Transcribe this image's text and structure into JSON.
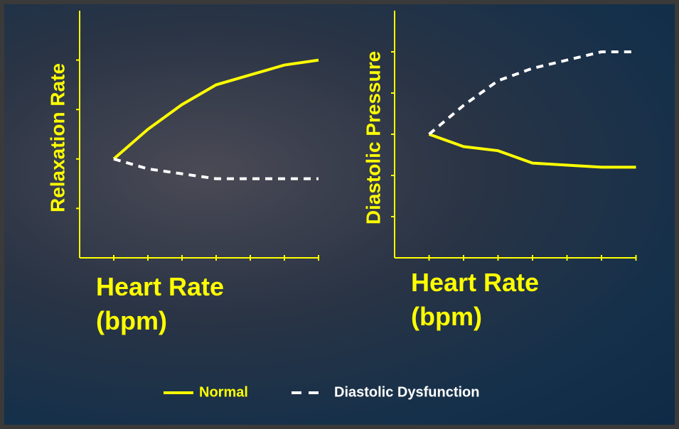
{
  "chart_data": [
    {
      "type": "line",
      "ylabel": "Relaxation Rate",
      "xlabel": "Heart Rate (bpm)",
      "x": [
        1,
        2,
        3,
        4,
        5,
        6,
        7
      ],
      "xlim": [
        0,
        7
      ],
      "xticks": [
        1,
        2,
        3,
        4,
        5,
        6,
        7
      ],
      "ylim": [
        0,
        5
      ],
      "yticks": [
        1,
        2,
        3,
        4
      ],
      "grid": false,
      "series": [
        {
          "name": "Normal",
          "color": "#ffff00",
          "style": "solid",
          "values": [
            2,
            2.6,
            3.1,
            3.5,
            3.7,
            3.9,
            4
          ]
        },
        {
          "name": "Diastolic Dysfunction",
          "color": "#ffffff",
          "style": "dashed",
          "values": [
            2,
            1.8,
            1.7,
            1.6,
            1.6,
            1.6,
            1.6
          ]
        }
      ]
    },
    {
      "type": "line",
      "ylabel": "Diastolic Pressure",
      "xlabel": "Heart Rate (bpm)",
      "x": [
        1,
        2,
        3,
        4,
        5,
        6,
        7
      ],
      "xlim": [
        0,
        7
      ],
      "xticks": [
        1,
        2,
        3,
        4,
        5,
        6,
        7
      ],
      "ylim": [
        0,
        6
      ],
      "yticks": [
        1,
        2,
        3,
        4,
        5
      ],
      "grid": false,
      "series": [
        {
          "color": "#ffff00",
          "style": "solid",
          "values": [
            3,
            2.7,
            2.6,
            2.3,
            2.25,
            2.2,
            2.2
          ]
        },
        {
          "color": "#ffffff",
          "style": "dashed",
          "values": [
            3,
            3.7,
            4.3,
            4.6,
            4.8,
            5,
            5
          ]
        }
      ]
    }
  ]
}
